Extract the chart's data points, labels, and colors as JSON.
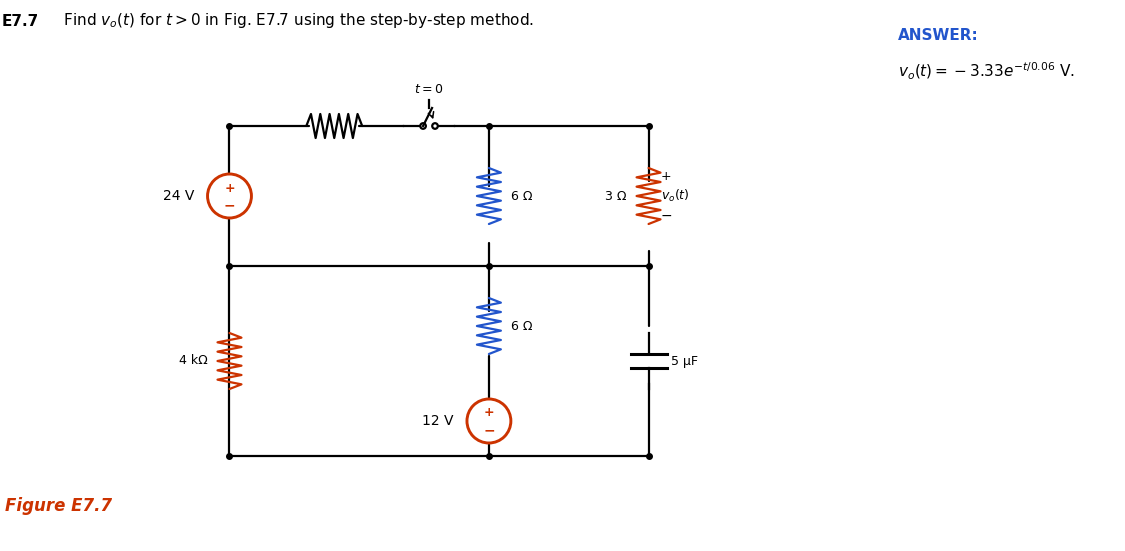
{
  "title": "E7.7  Find $v_o(t)$ for $t > 0$ in Fig. E7.7 using the step-by-step method.",
  "title_bold_part": "E7.7",
  "answer_title": "ANSWER:",
  "answer_formula": "$v_o(t) = -3.33e^{-t/0.06}$ V.",
  "figure_label": "Figure E7.7",
  "bg_color": "#ffffff",
  "title_color": "#000000",
  "answer_color": "#2255cc",
  "figure_label_color": "#cc3300",
  "circuit_color": "#000000",
  "resistor_color_top6": "#2255cc",
  "resistor_color_bot6": "#2255cc",
  "resistor_color_3": "#cc3300",
  "resistor_color_4k_top": "#000000",
  "resistor_color_4k_bot": "#cc3300",
  "source_24_color": "#cc3300",
  "source_12_color": "#cc3300",
  "switch_color": "#000000"
}
